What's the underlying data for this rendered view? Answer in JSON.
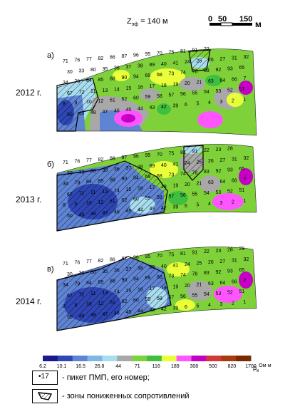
{
  "header": {
    "depth_label_main": "Z",
    "depth_label_sub": "эф",
    "depth_value": "= 140 м",
    "scale_ticks": [
      "0",
      "50",
      "150"
    ],
    "scale_unit": "м"
  },
  "panels": [
    {
      "letter": "а)",
      "year": "2012 г."
    },
    {
      "letter": "б)",
      "year": "2013 г."
    },
    {
      "letter": "в)",
      "year": "2014 г."
    }
  ],
  "legend": {
    "colors": [
      "#1a1a8c",
      "#2f46b5",
      "#5f84d4",
      "#7fb6e6",
      "#a8dcef",
      "#a8a8a8",
      "#7fd13a",
      "#3fbf3f",
      "#e8ff3a",
      "#ff55ff",
      "#c400c4",
      "#d23a3a",
      "#a83a10",
      "#7a2a00"
    ],
    "values": [
      "6.2",
      "10.1",
      "16.5",
      "26.8",
      "44",
      "71",
      "116",
      "189",
      "308",
      "500",
      "820",
      "1700"
    ],
    "unit_main": "ρ",
    "unit_sub": "к",
    "unit_suffix": "Ом·м",
    "picket_symbol": "•17",
    "picket_text": "- пикет ПМП, его номер;",
    "zone_text": "- зоны пониженных сопротивлений"
  },
  "pickets_top": [
    "71",
    "76",
    "77",
    "82",
    "86",
    "87",
    "96",
    "95",
    "70",
    "75",
    "81",
    "91",
    "22",
    "23",
    "28",
    "29",
    "30",
    "33",
    "80",
    "35",
    "36",
    "37",
    "38",
    "89",
    "40",
    "41",
    "24",
    "25",
    "26",
    "27",
    "31",
    "32",
    "34",
    "79",
    "84",
    "85",
    "88",
    "90",
    "94",
    "69",
    "68",
    "73",
    "74",
    "78",
    "83",
    "92",
    "93",
    "65",
    "67",
    "72",
    "11",
    "13",
    "14",
    "15",
    "16",
    "17",
    "18",
    "19",
    "20",
    "21",
    "63",
    "64",
    "66",
    "7",
    "8",
    "9",
    "10",
    "12",
    "61",
    "62",
    "60",
    "59",
    "58",
    "57",
    "56",
    "55",
    "54",
    "53",
    "52",
    "51",
    "50",
    "49",
    "48",
    "47",
    "46",
    "45",
    "44",
    "43",
    "42",
    "39",
    "6",
    "5",
    "4",
    "3",
    "2",
    "1"
  ]
}
